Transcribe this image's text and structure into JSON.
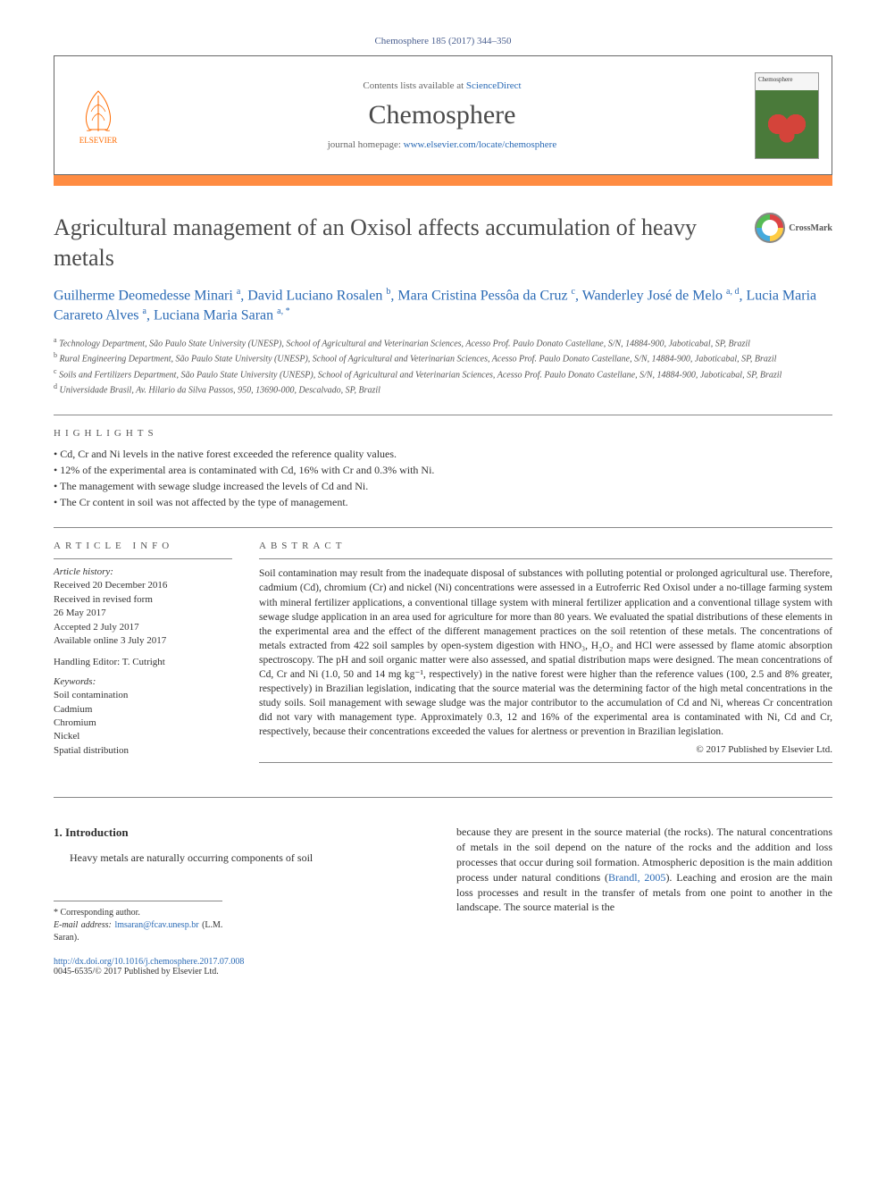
{
  "citation": "Chemosphere 185 (2017) 344–350",
  "header": {
    "contents_prefix": "Contents lists available at ",
    "sciencedirect": "ScienceDirect",
    "journal_name": "Chemosphere",
    "homepage_prefix": "journal homepage: ",
    "homepage_url": "www.elsevier.com/locate/chemosphere",
    "publisher_label": "ELSEVIER"
  },
  "title": "Agricultural management of an Oxisol affects accumulation of heavy metals",
  "crossmark_label": "CrossMark",
  "authors_html": "Guilherme Deomedesse Minari <sup>a</sup>, David Luciano Rosalen <sup>b</sup>, Mara Cristina Pessôa da Cruz <sup>c</sup>, Wanderley José de Melo <sup>a, d</sup>, Lucia Maria Carareto Alves <sup>a</sup>, Luciana Maria Saran <sup>a, *</sup>",
  "affiliations": [
    "a Technology Department, São Paulo State University (UNESP), School of Agricultural and Veterinarian Sciences, Acesso Prof. Paulo Donato Castellane, S/N, 14884-900, Jaboticabal, SP, Brazil",
    "b Rural Engineering Department, São Paulo State University (UNESP), School of Agricultural and Veterinarian Sciences, Acesso Prof. Paulo Donato Castellane, S/N, 14884-900, Jaboticabal, SP, Brazil",
    "c Soils and Fertilizers Department, São Paulo State University (UNESP), School of Agricultural and Veterinarian Sciences, Acesso Prof. Paulo Donato Castellane, S/N, 14884-900, Jaboticabal, SP, Brazil",
    "d Universidade Brasil, Av. Hilario da Silva Passos, 950, 13690-000, Descalvado, SP, Brazil"
  ],
  "highlights_heading": "HIGHLIGHTS",
  "highlights": [
    "Cd, Cr and Ni levels in the native forest exceeded the reference quality values.",
    "12% of the experimental area is contaminated with Cd, 16% with Cr and 0.3% with Ni.",
    "The management with sewage sludge increased the levels of Cd and Ni.",
    "The Cr content in soil was not affected by the type of management."
  ],
  "article_info_heading": "ARTICLE INFO",
  "article_info": {
    "history_label": "Article history:",
    "received": "Received 20 December 2016",
    "revised": "Received in revised form",
    "revised_date": "26 May 2017",
    "accepted": "Accepted 2 July 2017",
    "online": "Available online 3 July 2017",
    "editor_label": "Handling Editor: T. Cutright",
    "keywords_label": "Keywords:",
    "keywords": [
      "Soil contamination",
      "Cadmium",
      "Chromium",
      "Nickel",
      "Spatial distribution"
    ]
  },
  "abstract_heading": "ABSTRACT",
  "abstract": "Soil contamination may result from the inadequate disposal of substances with polluting potential or prolonged agricultural use. Therefore, cadmium (Cd), chromium (Cr) and nickel (Ni) concentrations were assessed in a Eutroferric Red Oxisol under a no-tillage farming system with mineral fertilizer applications, a conventional tillage system with mineral fertilizer application and a conventional tillage system with sewage sludge application in an area used for agriculture for more than 80 years. We evaluated the spatial distributions of these elements in the experimental area and the effect of the different management practices on the soil retention of these metals. The concentrations of metals extracted from 422 soil samples by open-system digestion with HNO₃, H₂O₂ and HCl were assessed by flame atomic absorption spectroscopy. The pH and soil organic matter were also assessed, and spatial distribution maps were designed. The mean concentrations of Cd, Cr and Ni (1.0, 50 and 14 mg kg⁻¹, respectively) in the native forest were higher than the reference values (100, 2.5 and 8% greater, respectively) in Brazilian legislation, indicating that the source material was the determining factor of the high metal concentrations in the study soils. Soil management with sewage sludge was the major contributor to the accumulation of Cd and Ni, whereas Cr concentration did not vary with management type. Approximately 0.3, 12 and 16% of the experimental area is contaminated with Ni, Cd and Cr, respectively, because their concentrations exceeded the values for alertness or prevention in Brazilian legislation.",
  "copyright": "© 2017 Published by Elsevier Ltd.",
  "intro": {
    "heading": "1. Introduction",
    "para_left": "Heavy metals are naturally occurring components of soil",
    "para_right_1": "because they are present in the source material (the rocks). The natural concentrations of metals in the soil depend on the nature of the rocks and the addition and loss processes that occur during soil formation. Atmospheric deposition is the main addition process under natural conditions (",
    "cite": "Brandl, 2005",
    "para_right_2": "). Leaching and erosion are the main loss processes and result in the transfer of metals from one point to another in the landscape. The source material is the"
  },
  "corresponding": {
    "label": "* Corresponding author.",
    "email_label": "E-mail address: ",
    "email": "lmsaran@fcav.unesp.br",
    "email_name": " (L.M. Saran)."
  },
  "doi": {
    "link": "http://dx.doi.org/10.1016/j.chemosphere.2017.07.008",
    "issn": "0045-6535/© 2017 Published by Elsevier Ltd."
  },
  "colors": {
    "orange_bar": "#ff8c42",
    "link": "#2a6ab5",
    "text": "#2e2e2e"
  }
}
